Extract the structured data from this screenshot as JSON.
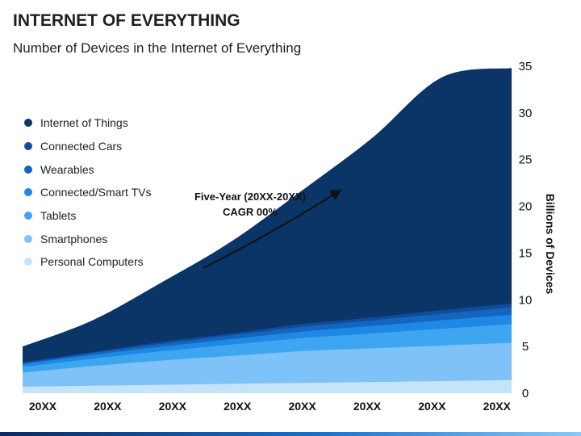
{
  "slide": {
    "title": "INTERNET OF EVERYTHING",
    "subtitle": "Number of Devices in the Internet of Everything"
  },
  "annotation": {
    "line1": "Five-Year (20XX-20XX)",
    "line2": "CAGR 00%"
  },
  "chart_data": {
    "type": "area",
    "stacked": true,
    "title": "",
    "xlabel": "",
    "ylabel": "Billions of Devices",
    "y_axis_side": "right",
    "ylim": [
      0,
      35
    ],
    "yticks": [
      0,
      5,
      10,
      15,
      20,
      25,
      30,
      35
    ],
    "grid": false,
    "legend_position": "left",
    "categories": [
      "20XX",
      "20XX",
      "20XX",
      "20XX",
      "20XX",
      "20XX",
      "20XX",
      "20XX"
    ],
    "series": [
      {
        "name": "Personal Computers",
        "color": "#c5e4fb",
        "values": [
          0.7,
          0.8,
          0.9,
          1.0,
          1.1,
          1.2,
          1.3,
          1.4
        ]
      },
      {
        "name": "Smartphones",
        "color": "#7fc2f7",
        "values": [
          1.5,
          2.1,
          2.6,
          3.0,
          3.4,
          3.6,
          3.8,
          4.0
        ]
      },
      {
        "name": "Tablets",
        "color": "#3ea6f1",
        "values": [
          0.6,
          0.8,
          1.0,
          1.2,
          1.4,
          1.6,
          1.8,
          2.0
        ]
      },
      {
        "name": "Connected/Smart TVs",
        "color": "#1e88e5",
        "values": [
          0.3,
          0.4,
          0.5,
          0.6,
          0.7,
          0.8,
          0.9,
          1.0
        ]
      },
      {
        "name": "Wearables",
        "color": "#1565c0",
        "values": [
          0.1,
          0.2,
          0.3,
          0.4,
          0.5,
          0.6,
          0.7,
          0.8
        ]
      },
      {
        "name": "Connected Cars",
        "color": "#0f4c9a",
        "values": [
          0.1,
          0.1,
          0.2,
          0.2,
          0.3,
          0.3,
          0.4,
          0.4
        ]
      },
      {
        "name": "Internet of Things",
        "color": "#0b3566",
        "values": [
          1.7,
          3.4,
          6.4,
          9.9,
          14.3,
          19.2,
          24.9,
          25.2
        ]
      }
    ]
  }
}
